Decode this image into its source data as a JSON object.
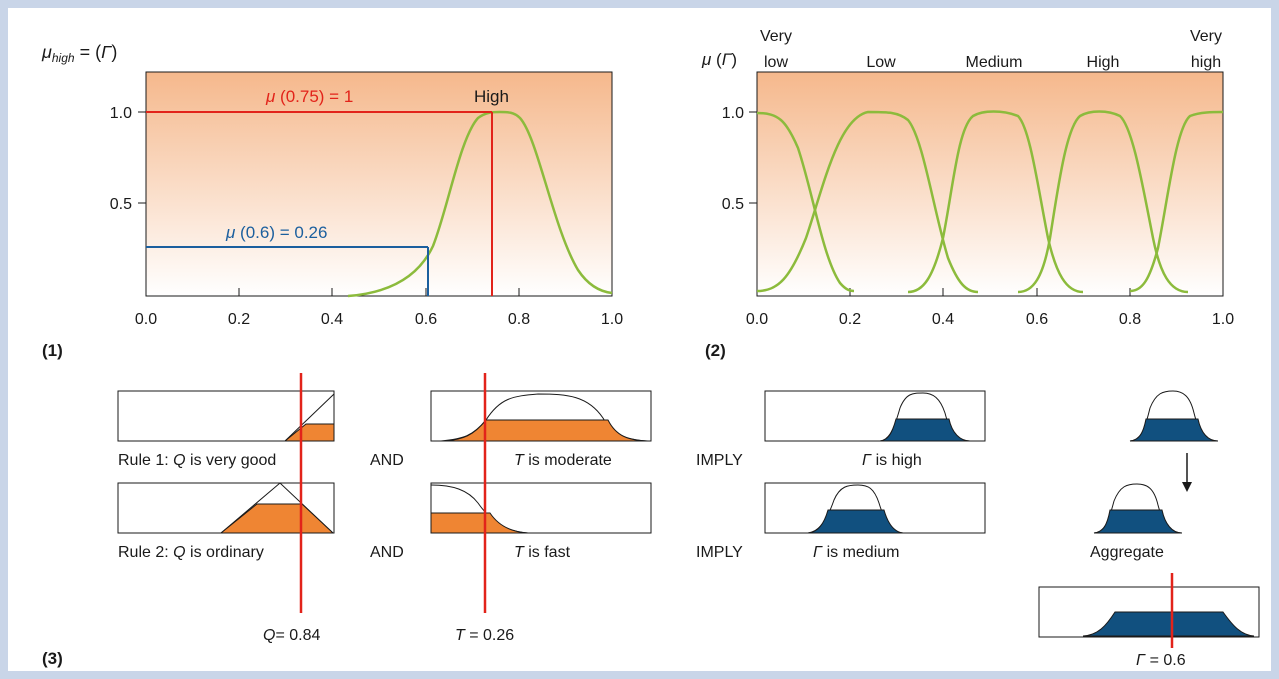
{
  "panel1": {
    "label": "(1)",
    "ylabel_mu": "μ",
    "ylabel_sub": "high",
    "ylabel_rest": " = (",
    "ylabel_gamma": "Γ",
    "ylabel_close": ")",
    "set_label": "High",
    "anno_red_mu": "μ",
    "anno_red_text": " (0.75) = 1",
    "anno_blue_mu": "μ",
    "anno_blue_text": " (0.6) = 0.26",
    "yticks": [
      "1.0",
      "0.5"
    ],
    "xticks": [
      "0.0",
      "0.2",
      "0.4",
      "0.6",
      "0.8",
      "1.0"
    ]
  },
  "panel2": {
    "label": "(2)",
    "ylabel_mu": "μ",
    "ylabel_rest": " (",
    "ylabel_gamma": "Γ",
    "ylabel_close": ")",
    "sets": [
      {
        "line1": "Very",
        "line2": "low"
      },
      {
        "line1": "",
        "line2": "Low"
      },
      {
        "line1": "",
        "line2": "Medium"
      },
      {
        "line1": "",
        "line2": "High"
      },
      {
        "line1": "Very",
        "line2": "high"
      }
    ],
    "yticks": [
      "1.0",
      "0.5"
    ],
    "xticks": [
      "0.0",
      "0.2",
      "0.4",
      "0.6",
      "0.8",
      "1.0"
    ]
  },
  "panel3": {
    "label": "(3)",
    "rule1": {
      "prefix": "Rule 1: ",
      "var": "Q",
      "text": " is very good"
    },
    "rule2": {
      "prefix": "Rule 2: ",
      "var": "Q",
      "text": " is ordinary"
    },
    "and1": "AND",
    "and2": "AND",
    "t1": {
      "var": "T",
      "text": " is moderate"
    },
    "t2": {
      "var": "T",
      "text": " is fast"
    },
    "imply1": "IMPLY",
    "imply2": "IMPLY",
    "g1": {
      "var": "Γ",
      "text": " is high"
    },
    "g2": {
      "var": "Γ",
      "text": " is medium"
    },
    "aggregate": "Aggregate",
    "q_value": {
      "var": "Q",
      "text": "= 0.84"
    },
    "t_value": {
      "var": "T",
      "text": " = 0.26"
    },
    "g_value": {
      "var": "Γ",
      "text": " = 0.6"
    }
  },
  "colors": {
    "frame_bg": "#c9d5e8",
    "curve": "#8cbb3c",
    "red": "#e2231a",
    "blue": "#1b5f9e",
    "orange": "#ef8533",
    "navy": "#11507f",
    "plot_top": "#f5b88c"
  }
}
